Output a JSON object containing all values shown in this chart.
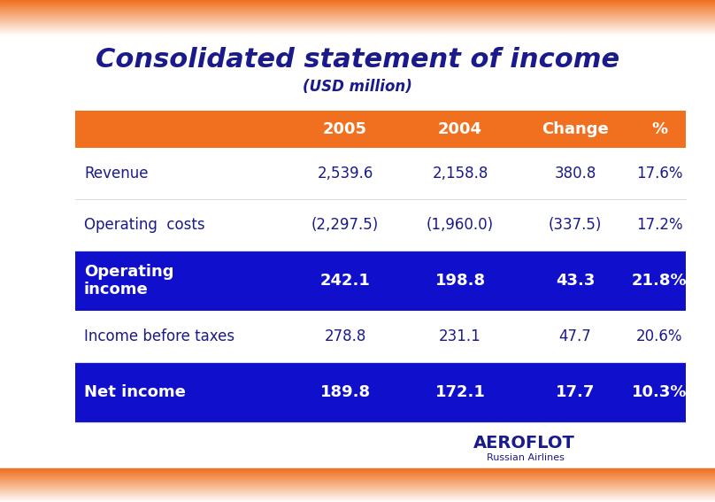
{
  "title": "Consolidated statement of income",
  "subtitle": "(USD million)",
  "rows": [
    {
      "label": "Revenue",
      "values": [
        "2,539.6",
        "2,158.8",
        "380.8",
        "17.6%"
      ],
      "highlight": false,
      "bold": false
    },
    {
      "label": "Operating  costs",
      "values": [
        "(2,297.5)",
        "(1,960.0)",
        "(337.5)",
        "17.2%"
      ],
      "highlight": false,
      "bold": false
    },
    {
      "label": "Operating\nincome",
      "values": [
        "242.1",
        "198.8",
        "43.3",
        "21.8%"
      ],
      "highlight": true,
      "bold": true
    },
    {
      "label": "Income before taxes",
      "values": [
        "278.8",
        "231.1",
        "47.7",
        "20.6%"
      ],
      "highlight": false,
      "bold": false
    },
    {
      "label": "Net income",
      "values": [
        "189.8",
        "172.1",
        "17.7",
        "10.3%"
      ],
      "highlight": true,
      "bold": true
    }
  ],
  "header_labels": [
    "2005",
    "2004",
    "Change",
    "%"
  ],
  "header_bg": "#F07020",
  "header_text": "#FFFFFF",
  "highlight_bg": "#1010CC",
  "highlight_text": "#FFFFFF",
  "normal_text": "#1A1A8C",
  "title_color": "#1A1A8C",
  "bg_color": "#FFFFFF",
  "orange_bar": "#F07020",
  "divider_color": "#DDDDDD",
  "fig_width": 8.08,
  "fig_height": 5.67,
  "dpi": 100
}
